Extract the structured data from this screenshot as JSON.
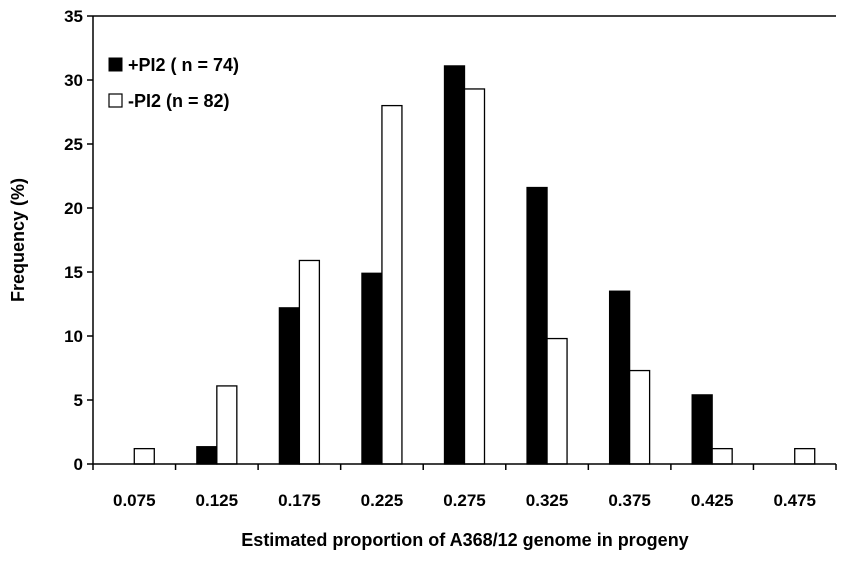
{
  "chart_data": {
    "type": "bar",
    "title": "",
    "xlabel": "Estimated proportion of A368/12 genome in progeny",
    "ylabel": "Frequency (%)",
    "ylim": [
      0,
      35
    ],
    "yticks": [
      "0",
      "5",
      "10",
      "15",
      "20",
      "25",
      "30",
      "35"
    ],
    "categories": [
      "0.075",
      "0.125",
      "0.175",
      "0.225",
      "0.275",
      "0.325",
      "0.375",
      "0.425",
      "0.475"
    ],
    "series": [
      {
        "name": "+PI2 ( n = 74)",
        "color": "#000000",
        "values": [
          0,
          1.35,
          12.2,
          14.9,
          31.1,
          21.6,
          13.5,
          5.4,
          0
        ]
      },
      {
        "name": "-PI2 (n = 82)",
        "color": "#ffffff",
        "values": [
          1.2,
          6.1,
          15.9,
          28.0,
          29.3,
          9.8,
          7.3,
          1.2,
          1.2
        ]
      }
    ],
    "legend_position": "top-left",
    "grid": false
  }
}
